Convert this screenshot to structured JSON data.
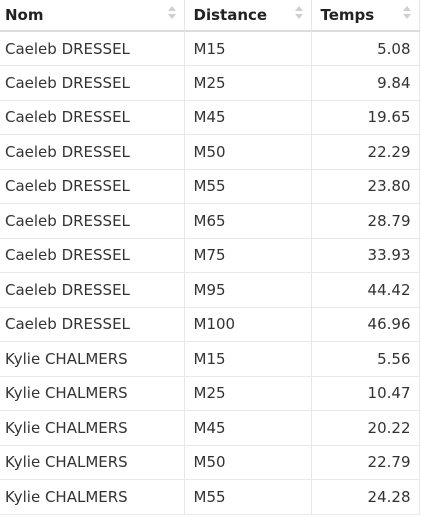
{
  "table": {
    "headers": [
      "Nom",
      "Distance",
      "Temps"
    ],
    "rows": [
      [
        "Caeleb DRESSEL",
        "M15",
        "5.08"
      ],
      [
        "Caeleb DRESSEL",
        "M25",
        "9.84"
      ],
      [
        "Caeleb DRESSEL",
        "M45",
        "19.65"
      ],
      [
        "Caeleb DRESSEL",
        "M50",
        "22.29"
      ],
      [
        "Caeleb DRESSEL",
        "M55",
        "23.80"
      ],
      [
        "Caeleb DRESSEL",
        "M65",
        "28.79"
      ],
      [
        "Caeleb DRESSEL",
        "M75",
        "33.93"
      ],
      [
        "Caeleb DRESSEL",
        "M95",
        "44.42"
      ],
      [
        "Caeleb DRESSEL",
        "M100",
        "46.96"
      ],
      [
        "Kylie CHALMERS",
        "M15",
        "5.56"
      ],
      [
        "Kylie CHALMERS",
        "M25",
        "10.47"
      ],
      [
        "Kylie CHALMERS",
        "M45",
        "20.22"
      ],
      [
        "Kylie CHALMERS",
        "M50",
        "22.79"
      ],
      [
        "Kylie CHALMERS",
        "M55",
        "24.28"
      ]
    ]
  },
  "icons": {
    "sort": "sort-both-icon"
  }
}
